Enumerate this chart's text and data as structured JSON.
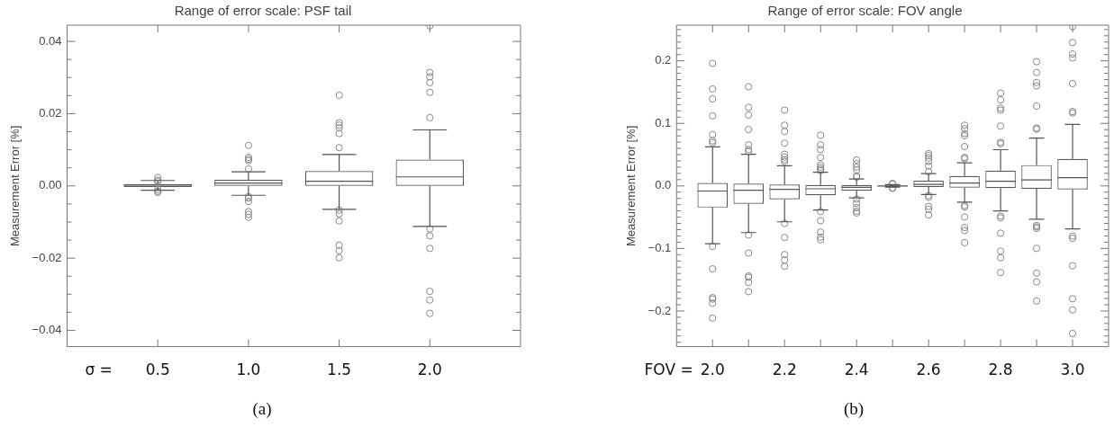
{
  "chart_data": [
    {
      "type": "box",
      "title": "Range of error scale: PSF tail",
      "xlabel": "σ =",
      "ylabel": "Measurement Error [%]",
      "color": "#555555",
      "grid": false,
      "legend": false,
      "categories": [
        "0.5",
        "1.0",
        "1.5",
        "2.0"
      ],
      "boxes": [
        {
          "low": -0.0012,
          "q1": -0.0003,
          "median": 0.0002,
          "q3": 0.0005,
          "high": 0.0015,
          "outliers": [
            0.0023,
            0.0016,
            0.0012,
            -0.001,
            -0.0015,
            -0.0018
          ]
        },
        {
          "low": -0.0026,
          "q1": 0,
          "median": 0.0008,
          "q3": 0.0017,
          "high": 0.0039,
          "outliers": [
            0.0112,
            0.0079,
            0.0074,
            0.007,
            0.0047,
            -0.003,
            -0.0034,
            -0.0043,
            -0.0071,
            -0.0079,
            -0.0087
          ]
        },
        {
          "low": -0.0065,
          "q1": 0,
          "median": 0.0013,
          "q3": 0.0041,
          "high": 0.0087,
          "outliers": [
            0.0251,
            0.0175,
            0.0168,
            0.0161,
            0.0145,
            0.0106,
            -0.0067,
            -0.0077,
            -0.0097,
            -0.0164,
            -0.0179,
            -0.0199
          ]
        },
        {
          "low": -0.0112,
          "q1": 0,
          "median": 0.0025,
          "q3": 0.0073,
          "high": 0.0155,
          "outliers": [
            0.0443,
            0.0314,
            0.0302,
            0.0286,
            0.0259,
            0.0189,
            -0.0119,
            -0.0138,
            -0.0173,
            -0.0292,
            -0.0316,
            -0.0353
          ]
        }
      ],
      "ylim": [
        -0.0445,
        0.0445
      ],
      "yticks": [
        {
          "value": -0.04,
          "label": "−0.04"
        },
        {
          "value": -0.035,
          "label": null
        },
        {
          "value": -0.03,
          "label": null
        },
        {
          "value": -0.025,
          "label": null
        },
        {
          "value": -0.02,
          "label": "−0.02"
        },
        {
          "value": -0.015,
          "label": null
        },
        {
          "value": -0.01,
          "label": null
        },
        {
          "value": -0.005,
          "label": null
        },
        {
          "value": 0,
          "label": "0.00"
        },
        {
          "value": 0.005,
          "label": null
        },
        {
          "value": 0.01,
          "label": null
        },
        {
          "value": 0.015,
          "label": null
        },
        {
          "value": 0.02,
          "label": "0.02"
        },
        {
          "value": 0.025,
          "label": null
        },
        {
          "value": 0.03,
          "label": null
        },
        {
          "value": 0.035,
          "label": null
        },
        {
          "value": 0.04,
          "label": "0.04"
        }
      ],
      "annotations": [
        "(a)"
      ]
    },
    {
      "type": "box",
      "title": "Range of error scale: FOV angle",
      "xlabel": "FOV =",
      "ylabel": "Measurement Error [%]",
      "color": "#555555",
      "grid": false,
      "legend": false,
      "categories": [
        "2.0",
        null,
        "2.2",
        null,
        "2.4",
        null,
        "2.6",
        null,
        "2.8",
        null,
        "3.0"
      ],
      "boxes": [
        {
          "low": -0.0925,
          "q1": -0.0346,
          "median": -0.0082,
          "q3": 0.0046,
          "high": 0.0624,
          "outliers": [
            0.196,
            0.155,
            0.139,
            0.112,
            0.082,
            0.072,
            0.069,
            -0.0966,
            -0.1326,
            -0.1786,
            -0.181,
            -0.1877,
            -0.2114
          ]
        },
        {
          "low": -0.0747,
          "q1": -0.0287,
          "median": -0.0068,
          "q3": 0.0036,
          "high": 0.0506,
          "outliers": [
            0.1585,
            0.1257,
            0.1134,
            0.0902,
            0.0656,
            0.0583,
            0.055,
            -0.0784,
            -0.1075,
            -0.144,
            -0.146,
            -0.1544,
            -0.169
          ]
        },
        {
          "low": -0.0574,
          "q1": -0.0214,
          "median": -0.0055,
          "q3": 0.0023,
          "high": 0.0323,
          "outliers": [
            0.1212,
            0.097,
            0.087,
            0.0683,
            0.0506,
            0.046,
            0.042,
            0.039,
            -0.0601,
            -0.0825,
            -0.1098,
            -0.1185,
            -0.1285
          ]
        },
        {
          "low": -0.0387,
          "q1": -0.015,
          "median": -0.0046,
          "q3": 0.0014,
          "high": 0.0219,
          "outliers": [
            0.0811,
            0.0656,
            0.0583,
            0.0456,
            0.0337,
            0.03,
            0.027,
            0.0246,
            -0.041,
            -0.0556,
            -0.0738,
            -0.082,
            -0.0861
          ]
        },
        {
          "low": -0.0191,
          "q1": -0.0077,
          "median": -0.0023,
          "q3": 0.0014,
          "high": 0.0109,
          "outliers": [
            0.0415,
            0.0355,
            0.03,
            0.0255,
            0.016,
            0.014,
            -0.021,
            -0.0278,
            -0.0346,
            -0.0405,
            -0.0433
          ]
        },
        {
          "low": -0.002,
          "q1": -0.0005,
          "median": 0,
          "q3": 0.0005,
          "high": 0.002,
          "outliers": [
            0.004,
            0.003,
            -0.003,
            -0.004
          ]
        },
        {
          "low": -0.0137,
          "q1": -0.0018,
          "median": 0.0023,
          "q3": 0.0082,
          "high": 0.0196,
          "outliers": [
            0.0515,
            0.0483,
            0.0446,
            0.0392,
            0.0319,
            0.0228,
            -0.0155,
            -0.0182,
            -0.0328,
            -0.0374,
            -0.0465
          ]
        },
        {
          "low": -0.026,
          "q1": -0.0027,
          "median": 0.0046,
          "q3": 0.0159,
          "high": 0.0369,
          "outliers": [
            0.097,
            0.0916,
            0.0838,
            0.0802,
            0.0629,
            0.0456,
            0.0437,
            -0.0314,
            -0.0337,
            -0.0497,
            -0.0665,
            -0.0715,
            -0.0907
          ]
        },
        {
          "low": -0.0401,
          "q1": -0.0036,
          "median": 0.0073,
          "q3": 0.0246,
          "high": 0.0579,
          "outliers": [
            0.1485,
            0.1376,
            0.1244,
            0.1212,
            0.0957,
            0.0697,
            0.0674,
            -0.0483,
            -0.051,
            -0.0756,
            -0.1043,
            -0.1148,
            -0.1385
          ]
        },
        {
          "low": -0.0533,
          "q1": -0.0046,
          "median": 0.0096,
          "q3": 0.0333,
          "high": 0.0765,
          "outliers": [
            0.1986,
            0.1813,
            0.1654,
            0.16,
            0.1276,
            0.0925,
            0.0907,
            -0.0633,
            -0.0656,
            -0.0679,
            -0.0998,
            -0.1394,
            -0.1535,
            -0.184
          ]
        },
        {
          "low": -0.0688,
          "q1": -0.0055,
          "median": 0.0132,
          "q3": 0.0433,
          "high": 0.0984,
          "outliers": [
            0.2547,
            0.2292,
            0.2109,
            0.2046,
            0.1636,
            0.1189,
            0.1166,
            -0.0802,
            -0.0838,
            -0.1276,
            -0.1804,
            -0.1982,
            -0.236
          ]
        }
      ],
      "ylim": [
        -0.257,
        0.257
      ],
      "yticks": [
        {
          "value": -0.25,
          "label": null
        },
        {
          "value": -0.24,
          "label": null
        },
        {
          "value": -0.23,
          "label": null
        },
        {
          "value": -0.22,
          "label": null
        },
        {
          "value": -0.21,
          "label": null
        },
        {
          "value": -0.2,
          "label": "−0.2"
        },
        {
          "value": -0.19,
          "label": null
        },
        {
          "value": -0.18,
          "label": null
        },
        {
          "value": -0.17,
          "label": null
        },
        {
          "value": -0.16,
          "label": null
        },
        {
          "value": -0.15,
          "label": null
        },
        {
          "value": -0.14,
          "label": null
        },
        {
          "value": -0.13,
          "label": null
        },
        {
          "value": -0.12,
          "label": null
        },
        {
          "value": -0.11,
          "label": null
        },
        {
          "value": -0.1,
          "label": "−0.1"
        },
        {
          "value": -0.09,
          "label": null
        },
        {
          "value": -0.08,
          "label": null
        },
        {
          "value": -0.07,
          "label": null
        },
        {
          "value": -0.06,
          "label": null
        },
        {
          "value": -0.05,
          "label": null
        },
        {
          "value": -0.04,
          "label": null
        },
        {
          "value": -0.03,
          "label": null
        },
        {
          "value": -0.02,
          "label": null
        },
        {
          "value": -0.01,
          "label": null
        },
        {
          "value": 0,
          "label": "0.0"
        },
        {
          "value": 0.01,
          "label": null
        },
        {
          "value": 0.02,
          "label": null
        },
        {
          "value": 0.03,
          "label": null
        },
        {
          "value": 0.04,
          "label": null
        },
        {
          "value": 0.05,
          "label": null
        },
        {
          "value": 0.06,
          "label": null
        },
        {
          "value": 0.07,
          "label": null
        },
        {
          "value": 0.08,
          "label": null
        },
        {
          "value": 0.09,
          "label": null
        },
        {
          "value": 0.1,
          "label": "0.1"
        },
        {
          "value": 0.11,
          "label": null
        },
        {
          "value": 0.12,
          "label": null
        },
        {
          "value": 0.13,
          "label": null
        },
        {
          "value": 0.14,
          "label": null
        },
        {
          "value": 0.15,
          "label": null
        },
        {
          "value": 0.16,
          "label": null
        },
        {
          "value": 0.17,
          "label": null
        },
        {
          "value": 0.18,
          "label": null
        },
        {
          "value": 0.19,
          "label": null
        },
        {
          "value": 0.2,
          "label": "0.2"
        },
        {
          "value": 0.21,
          "label": null
        },
        {
          "value": 0.22,
          "label": null
        },
        {
          "value": 0.23,
          "label": null
        },
        {
          "value": 0.24,
          "label": null
        },
        {
          "value": 0.25,
          "label": null
        }
      ],
      "annotations": [
        "(b)"
      ]
    }
  ]
}
